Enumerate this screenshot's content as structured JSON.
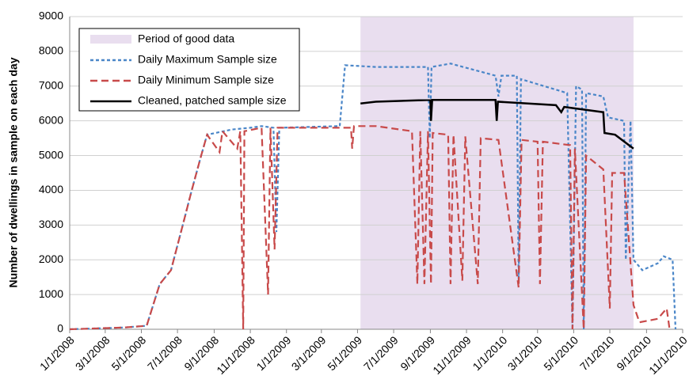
{
  "chart_data": {
    "type": "line",
    "y_label": "Number of dwellings in sample on each day",
    "xlim": [
      "1/1/2008",
      "11/1/2010"
    ],
    "xticks": [
      "1/1/2008",
      "3/1/2008",
      "5/1/2008",
      "7/1/2008",
      "9/1/2008",
      "11/1/2008",
      "1/1/2009",
      "3/1/2009",
      "5/1/2009",
      "7/1/2009",
      "9/1/2009",
      "11/1/2009",
      "1/1/2010",
      "3/1/2010",
      "5/1/2010",
      "7/1/2010",
      "9/1/2010",
      "11/1/2010"
    ],
    "ylim": [
      0,
      9000
    ],
    "yticks": [
      0,
      1000,
      2000,
      3000,
      4000,
      5000,
      6000,
      7000,
      8000,
      9000
    ],
    "grid": true,
    "legend": "upper left",
    "shaded": {
      "name": "Period of good data",
      "color": "#e9deef",
      "start": "5/6/2009",
      "end": "8/10/2010"
    },
    "series": [
      {
        "name": "Daily Maximum Sample size",
        "color": "#4a86c8",
        "dash": "4 3",
        "x": [
          "1/1/2008",
          "4/1/2008",
          "5/10/2008",
          "6/1/2008",
          "6/20/2008",
          "7/10/2008",
          "7/25/2008",
          "8/10/2008",
          "8/20/2008",
          "10/1/2008",
          "11/1/2008",
          "11/20/2008",
          "12/10/2008",
          "12/15/2008",
          "12/20/2008",
          "4/1/2009",
          "4/10/2009",
          "6/1/2009",
          "8/28/2009",
          "8/31/2009",
          "9/3/2009",
          "10/5/2009",
          "12/20/2009",
          "12/25/2009",
          "12/30/2009",
          "1/25/2010",
          "1/28/2010",
          "2/1/2010",
          "4/20/2010",
          "4/29/2010",
          "5/5/2010",
          "5/15/2010",
          "5/18/2010",
          "5/22/2010",
          "6/20/2010",
          "6/28/2010",
          "7/25/2010",
          "7/28/2010",
          "8/5/2010",
          "8/10/2010",
          "8/25/2010",
          "9/20/2010",
          "9/30/2010",
          "10/15/2010",
          "10/20/2010"
        ],
        "values": [
          0,
          50,
          100,
          1300,
          1700,
          3000,
          4000,
          5000,
          5600,
          5750,
          5800,
          5850,
          5800,
          2800,
          5800,
          5850,
          7600,
          7550,
          7550,
          5500,
          7550,
          7650,
          7300,
          6700,
          7300,
          7300,
          1400,
          7200,
          6800,
          0,
          7000,
          6900,
          0,
          6800,
          6700,
          6100,
          6000,
          2000,
          6000,
          2000,
          1700,
          1900,
          2100,
          2000,
          0
        ]
      },
      {
        "name": "Daily Minimum Sample size",
        "color": "#c84a4a",
        "dash": "9 5",
        "x": [
          "1/1/2008",
          "4/1/2008",
          "5/10/2008",
          "6/1/2008",
          "6/20/2008",
          "7/10/2008",
          "7/25/2008",
          "8/10/2008",
          "8/20/2008",
          "9/10/2008",
          "9/15/2008",
          "10/10/2008",
          "10/15/2008",
          "10/20/2008",
          "10/22/2008",
          "11/20/2008",
          "12/1/2008",
          "12/5/2008",
          "12/12/2008",
          "12/17/2008",
          "4/20/2009",
          "4/22/2009",
          "4/25/2009",
          "6/1/2009",
          "8/1/2009",
          "8/10/2009",
          "8/15/2009",
          "8/22/2009",
          "8/28/2009",
          "9/2/2009",
          "9/5/2009",
          "10/1/2009",
          "10/5/2009",
          "10/10/2009",
          "10/25/2009",
          "10/30/2009",
          "11/20/2009",
          "11/25/2009",
          "12/25/2009",
          "1/28/2010",
          "2/2/2010",
          "3/1/2010",
          "3/5/2010",
          "3/10/2010",
          "4/25/2010",
          "4/29/2010",
          "5/3/2010",
          "5/18/2010",
          "5/22/2010",
          "6/20/2010",
          "7/1/2010",
          "7/5/2010",
          "7/25/2010",
          "8/10/2010",
          "8/20/2010",
          "9/20/2010",
          "10/5/2010",
          "10/10/2010"
        ],
        "values": [
          0,
          50,
          100,
          1300,
          1700,
          3000,
          4000,
          5000,
          5600,
          5100,
          5700,
          5200,
          5700,
          0,
          5700,
          5800,
          1000,
          5800,
          2300,
          5800,
          5800,
          5200,
          5850,
          5850,
          5700,
          1300,
          5700,
          1300,
          5700,
          1300,
          5650,
          5600,
          1300,
          5600,
          1400,
          5550,
          1300,
          5500,
          5450,
          1200,
          5450,
          5400,
          1300,
          5400,
          5300,
          0,
          5200,
          0,
          5000,
          4600,
          600,
          4500,
          4500,
          700,
          200,
          300,
          600,
          0
        ]
      },
      {
        "name": "Cleaned, patched sample size",
        "color": "#000000",
        "dash": "none",
        "x": [
          "5/6/2009",
          "6/1/2009",
          "9/1/2009",
          "9/2/2009",
          "9/4/2009",
          "12/20/2009",
          "12/22/2009",
          "12/24/2009",
          "4/1/2010",
          "4/10/2010",
          "4/15/2010",
          "6/20/2010",
          "6/22/2010",
          "7/10/2010",
          "8/10/2010"
        ],
        "values": [
          6500,
          6550,
          6600,
          6000,
          6600,
          6600,
          6000,
          6550,
          6450,
          6250,
          6400,
          6250,
          5650,
          5600,
          5200
        ]
      }
    ]
  }
}
